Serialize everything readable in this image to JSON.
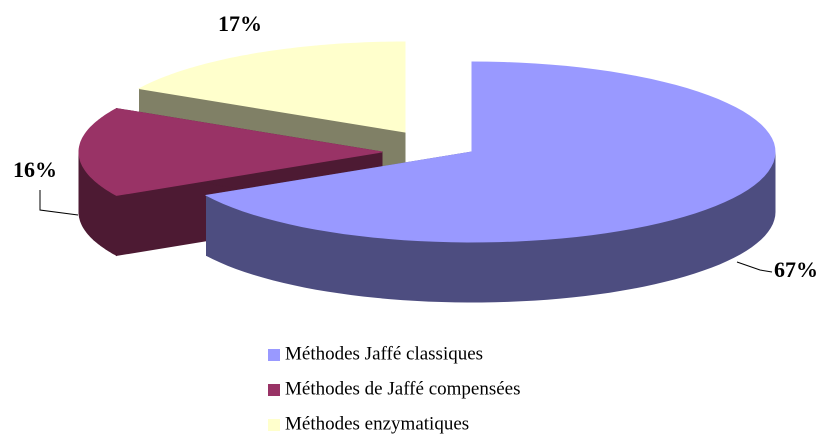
{
  "chart_data": {
    "type": "pie",
    "categories": [
      "Méthodes Jaffé classiques",
      "Méthodes de Jaffé compensées",
      "Méthodes enzymatiques"
    ],
    "values": [
      67,
      16,
      17
    ],
    "value_labels": [
      "67%",
      "16%",
      "17%"
    ],
    "colors": [
      "#9999ff",
      "#993366",
      "#ffffcc"
    ]
  }
}
